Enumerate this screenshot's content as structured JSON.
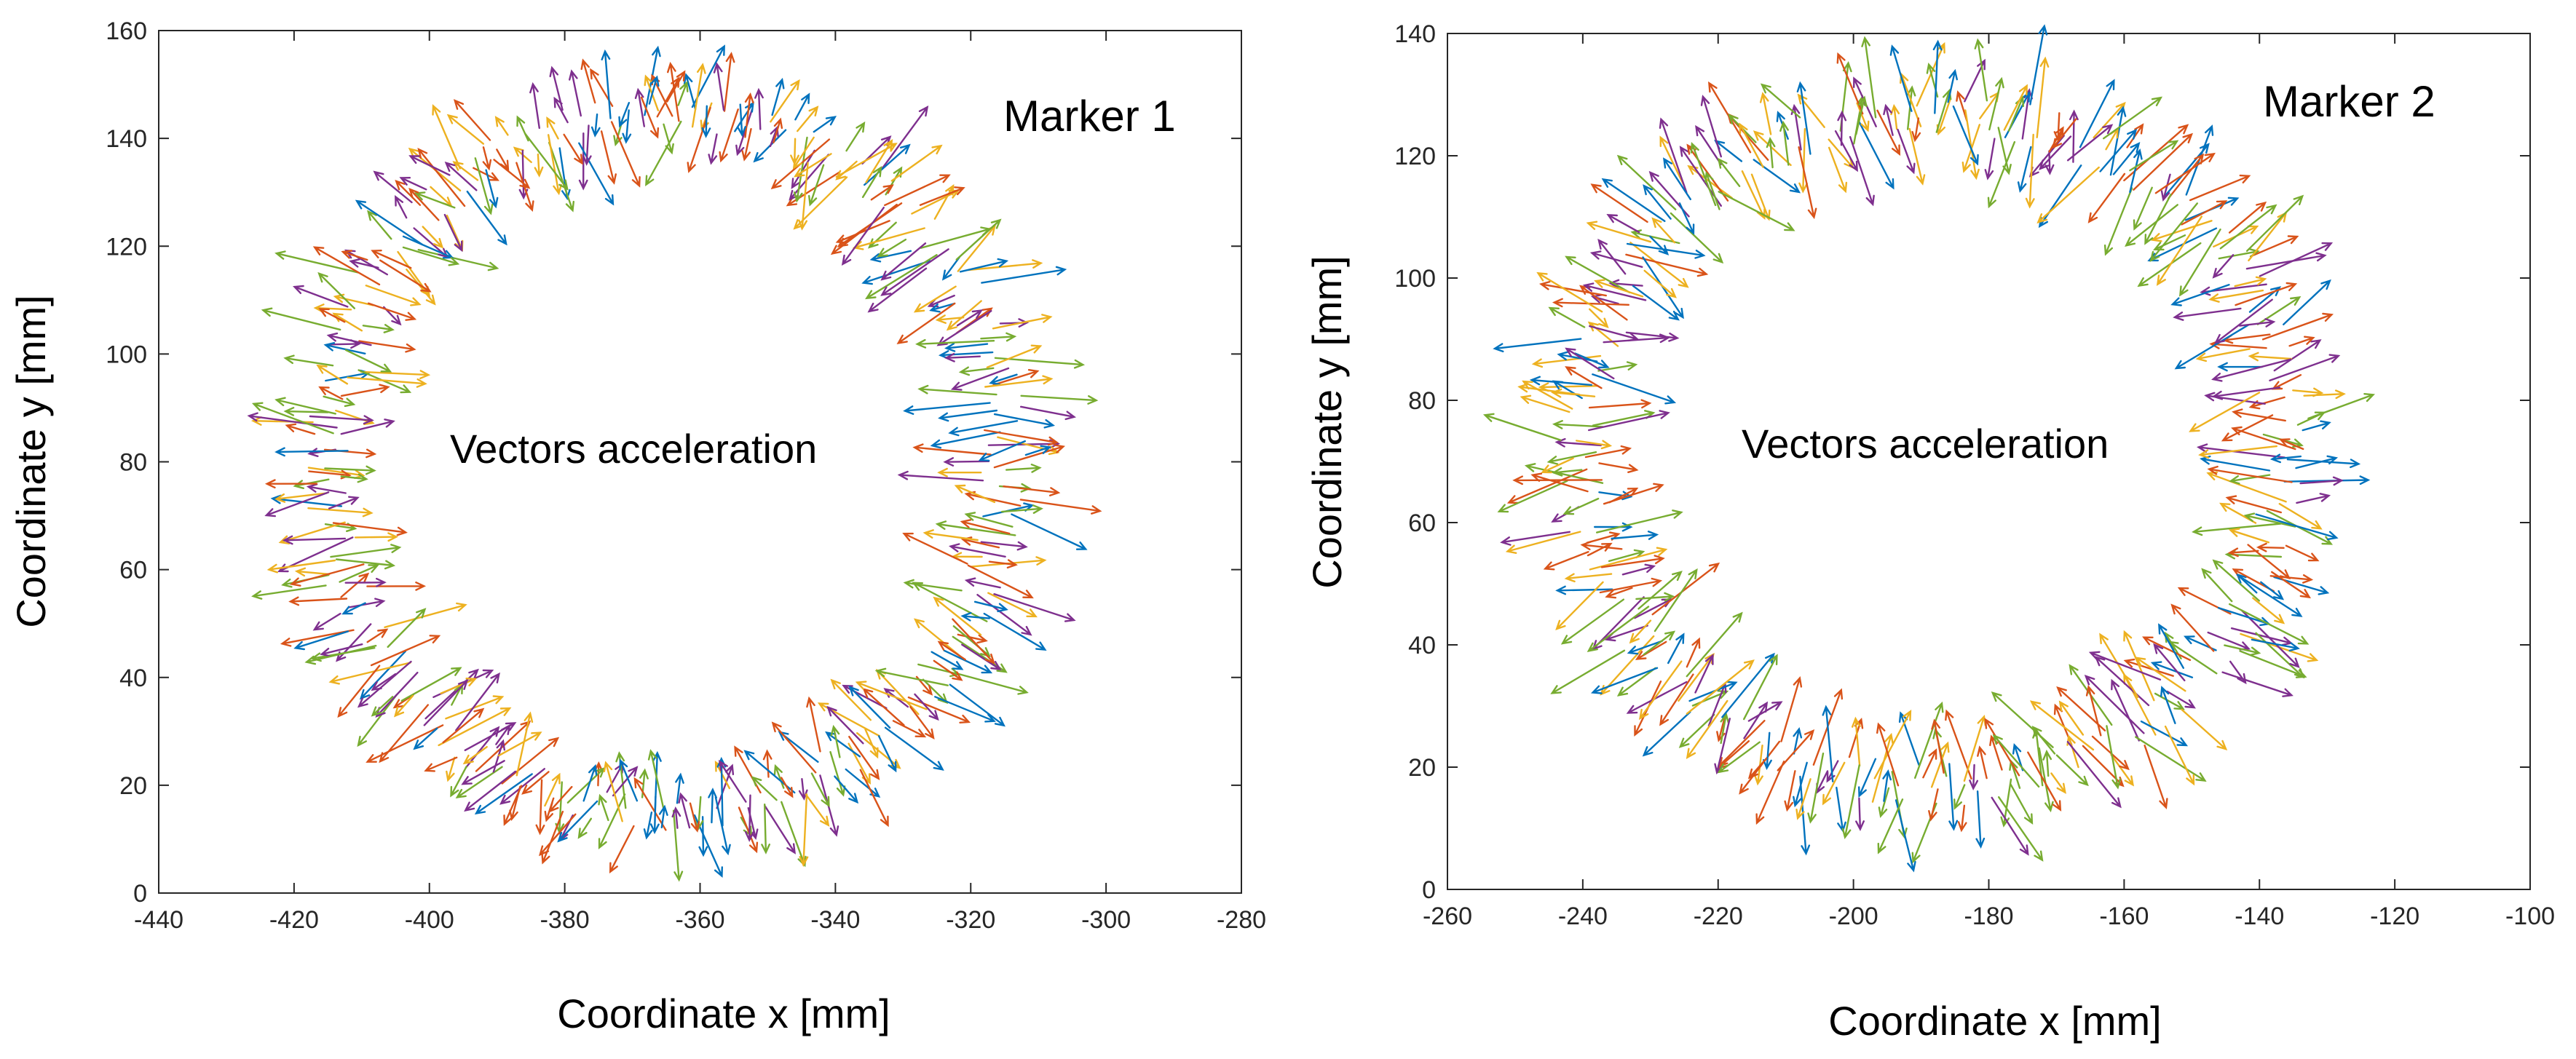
{
  "figure": {
    "color_palette": [
      "#0072BD",
      "#D95319",
      "#EDB120",
      "#7E2F8E",
      "#77AC30",
      "#4DBEEE",
      "#A2142F"
    ]
  },
  "chart_data": [
    {
      "type": "quiver",
      "title": "Marker 1",
      "annotation": "Vectors acceleration",
      "xlabel": "Coordinate x [mm]",
      "ylabel": "Coordinate y [mm]",
      "xlim": [
        -440,
        -280
      ],
      "ylim": [
        0,
        160
      ],
      "xticks": [
        -440,
        -420,
        -400,
        -380,
        -360,
        -340,
        -320,
        -300,
        -280
      ],
      "yticks": [
        0,
        20,
        40,
        60,
        80,
        100,
        120,
        140,
        160
      ],
      "xtick_labels": [
        "-440",
        "-420",
        "-400",
        "-380",
        "-360",
        "-340",
        "-320",
        "-300",
        "-280"
      ],
      "ytick_labels": [
        "0",
        "20",
        "40",
        "60",
        "80",
        "100",
        "120",
        "140",
        "160"
      ],
      "trajectory": {
        "shape": "ellipse",
        "center": [
          -365,
          80
        ],
        "radius_x": 50,
        "radius_y": 65
      },
      "vectors_per_ring": 150,
      "vector_length_mm": {
        "min": 6,
        "max": 22
      }
    },
    {
      "type": "quiver",
      "title": "Marker 2",
      "annotation": "Vectors acceleration",
      "xlabel": "Coordinate x [mm]",
      "ylabel": "Coordinate y [mm]",
      "xlim": [
        -260,
        -100
      ],
      "ylim": [
        0,
        140
      ],
      "xticks": [
        -260,
        -240,
        -220,
        -200,
        -180,
        -160,
        -140,
        -120,
        -100
      ],
      "yticks": [
        0,
        20,
        40,
        60,
        80,
        100,
        120,
        140
      ],
      "xtick_labels": [
        "-260",
        "-240",
        "-220",
        "-200",
        "-180",
        "-160",
        "-140",
        "-120",
        "-100"
      ],
      "ytick_labels": [
        "0",
        "20",
        "40",
        "60",
        "80",
        "100",
        "120",
        "140"
      ],
      "trajectory": {
        "shape": "ellipse",
        "center": [
          -188,
          72
        ],
        "radius_x": 52,
        "radius_y": 55
      },
      "vectors_per_ring": 150,
      "vector_length_mm": {
        "min": 6,
        "max": 22
      }
    }
  ]
}
